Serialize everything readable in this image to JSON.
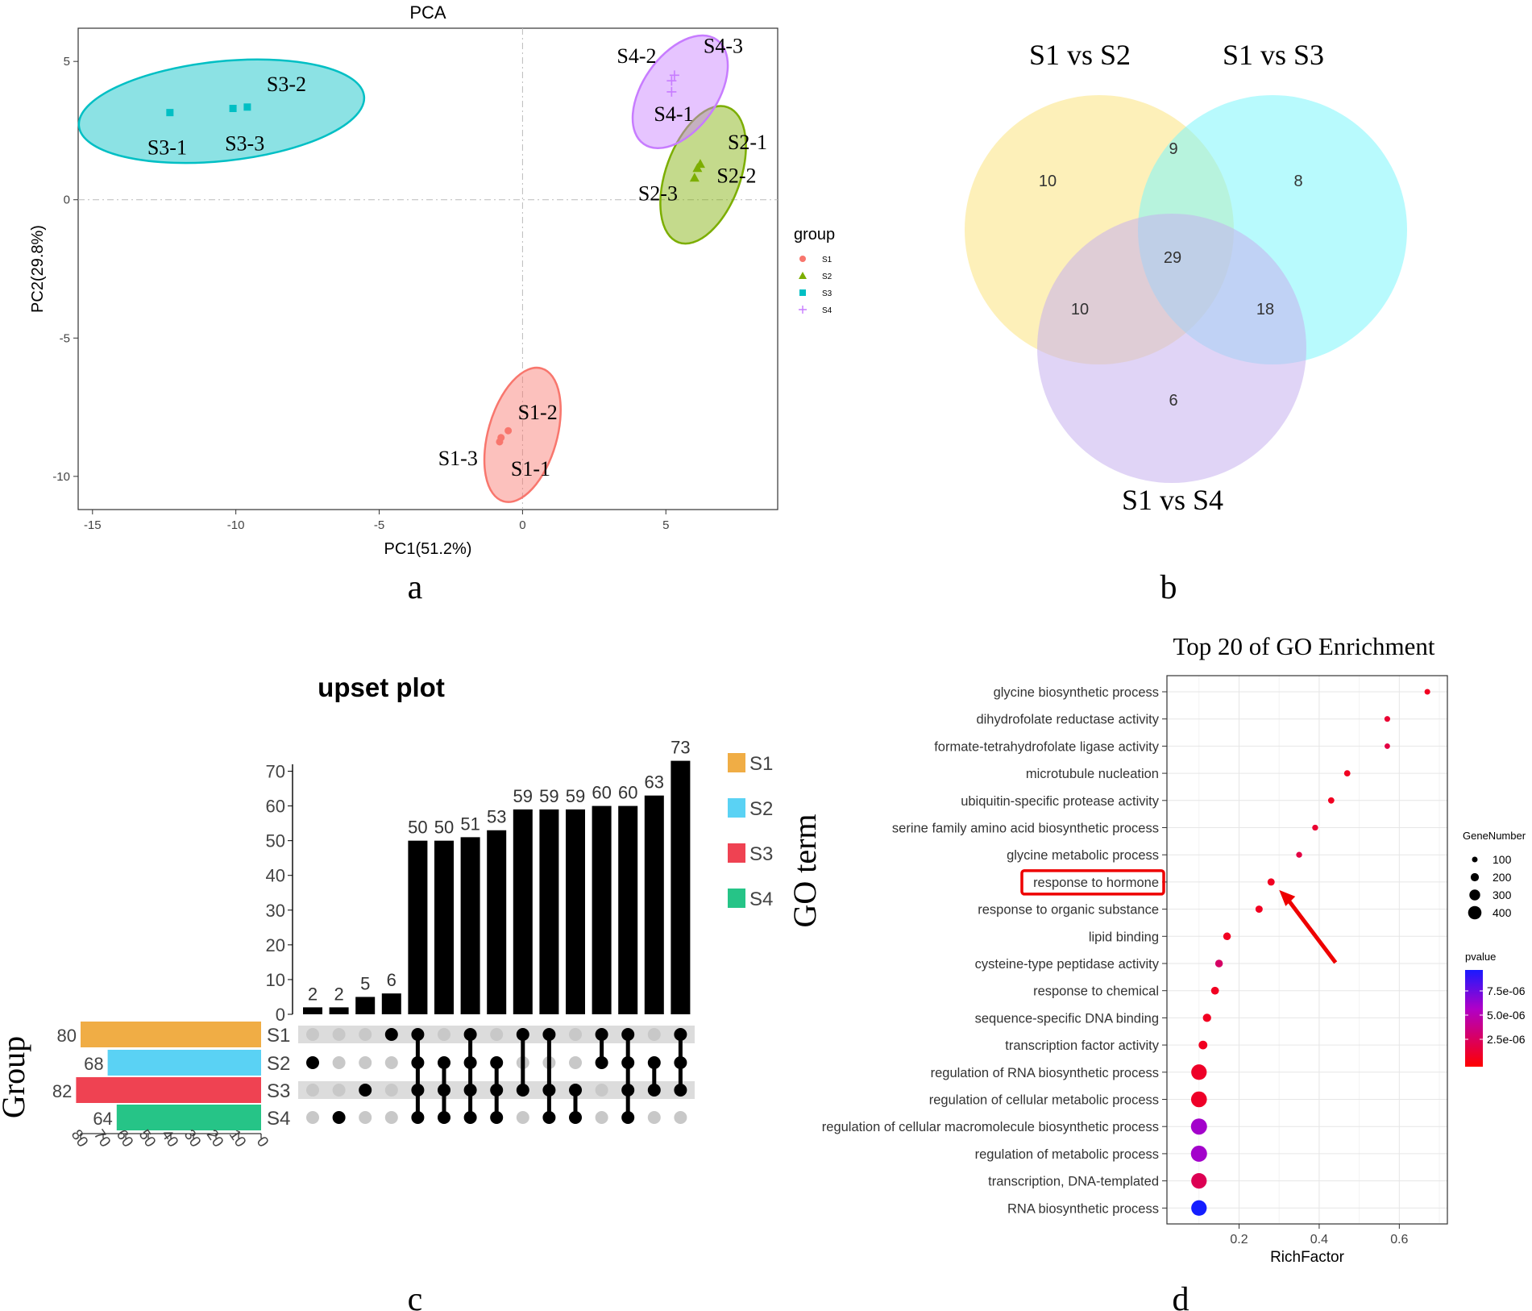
{
  "chart_data": [
    {
      "type": "scatter",
      "panel": "a",
      "title": "PCA",
      "xlabel": "PC1(51.2%)",
      "ylabel": "PC2(29.8%)",
      "xlim": [
        -15.5,
        8.9
      ],
      "ylim": [
        -11.2,
        6.2
      ],
      "xticks": [
        -15,
        -10,
        -5,
        0,
        5
      ],
      "yticks": [
        -10,
        -5,
        0,
        5
      ],
      "legend_title": "group",
      "groups": [
        {
          "name": "S1",
          "color": "#f8766d",
          "marker": "circle",
          "ellipse": {
            "cx": 0.0,
            "cy": -8.5,
            "rx": 1.2,
            "ry": 2.5,
            "angle": 16
          },
          "points": [
            {
              "label": "S1-2",
              "x": -0.5,
              "y": -8.35
            },
            {
              "label": "S1-1",
              "x": -0.8,
              "y": -8.75
            },
            {
              "label": "S1-3",
              "x": -0.75,
              "y": -8.6
            }
          ]
        },
        {
          "name": "S2",
          "color": "#7cae00",
          "marker": "triangle",
          "ellipse": {
            "cx": 6.3,
            "cy": 0.9,
            "rx": 1.3,
            "ry": 2.6,
            "angle": 20
          },
          "points": [
            {
              "label": "S2-1",
              "x": 6.2,
              "y": 1.3
            },
            {
              "label": "S2-2",
              "x": 6.1,
              "y": 1.15
            },
            {
              "label": "S2-3",
              "x": 6.0,
              "y": 0.8
            }
          ]
        },
        {
          "name": "S3",
          "color": "#00bfc4",
          "marker": "square",
          "ellipse": {
            "cx": -10.5,
            "cy": 3.2,
            "rx": 5.0,
            "ry": 1.8,
            "angle": -6
          },
          "points": [
            {
              "label": "S3-1",
              "x": -12.3,
              "y": 3.15
            },
            {
              "label": "S3-2",
              "x": -9.6,
              "y": 3.35
            },
            {
              "label": "S3-3",
              "x": -10.1,
              "y": 3.3
            }
          ]
        },
        {
          "name": "S4",
          "color": "#c77cff",
          "marker": "plus",
          "ellipse": {
            "cx": 5.5,
            "cy": 3.9,
            "rx": 1.3,
            "ry": 2.3,
            "angle": 35
          },
          "points": [
            {
              "label": "S4-3",
              "x": 5.3,
              "y": 4.5
            },
            {
              "label": "S4-2",
              "x": 5.2,
              "y": 4.3
            },
            {
              "label": "S4-1",
              "x": 5.2,
              "y": 3.9
            }
          ]
        }
      ]
    },
    {
      "type": "venn",
      "panel": "b",
      "sets": [
        {
          "name": "S1 vs S2",
          "color": "#fbe37f"
        },
        {
          "name": "S1 vs S3",
          "color": "#7ef5fb"
        },
        {
          "name": "S1 vs S4",
          "color": "#c7b1ee"
        }
      ],
      "regions": [
        {
          "sets": [
            "S1 vs S2"
          ],
          "value": 10
        },
        {
          "sets": [
            "S1 vs S2",
            "S1 vs S3"
          ],
          "value": 9
        },
        {
          "sets": [
            "S1 vs S3"
          ],
          "value": 8
        },
        {
          "sets": [
            "S1 vs S2",
            "S1 vs S3",
            "S1 vs S4"
          ],
          "value": 29
        },
        {
          "sets": [
            "S1 vs S2",
            "S1 vs S4"
          ],
          "value": 10
        },
        {
          "sets": [
            "S1 vs S3",
            "S1 vs S4"
          ],
          "value": 18
        },
        {
          "sets": [
            "S1 vs S4"
          ],
          "value": 6
        }
      ]
    },
    {
      "type": "upset",
      "panel": "c",
      "title": "upset plot",
      "ylabel": "Group",
      "ylim": [
        0,
        75
      ],
      "yticks": [
        0,
        10,
        20,
        30,
        40,
        50,
        60,
        70
      ],
      "set_size_ticks": [
        80,
        70,
        60,
        50,
        40,
        30,
        20,
        10,
        0
      ],
      "sets": [
        {
          "name": "S1",
          "size": 80,
          "color": "#f0ad45"
        },
        {
          "name": "S2",
          "size": 68,
          "color": "#5ad2f4"
        },
        {
          "name": "S3",
          "size": 82,
          "color": "#ef4252"
        },
        {
          "name": "S4",
          "size": 64,
          "color": "#26c487"
        }
      ],
      "intersections": [
        {
          "value": 2,
          "sets": [
            "S2"
          ]
        },
        {
          "value": 2,
          "sets": [
            "S4"
          ]
        },
        {
          "value": 5,
          "sets": [
            "S3"
          ]
        },
        {
          "value": 6,
          "sets": [
            "S1"
          ]
        },
        {
          "value": 50,
          "sets": [
            "S1",
            "S2",
            "S3",
            "S4"
          ]
        },
        {
          "value": 50,
          "sets": [
            "S2",
            "S3",
            "S4"
          ]
        },
        {
          "value": 51,
          "sets": [
            "S1",
            "S2",
            "S3",
            "S4"
          ]
        },
        {
          "value": 53,
          "sets": [
            "S2",
            "S3",
            "S4"
          ]
        },
        {
          "value": 59,
          "sets": [
            "S1",
            "S3"
          ]
        },
        {
          "value": 59,
          "sets": [
            "S1",
            "S3",
            "S4"
          ]
        },
        {
          "value": 59,
          "sets": [
            "S3",
            "S4"
          ]
        },
        {
          "value": 60,
          "sets": [
            "S1",
            "S2"
          ]
        },
        {
          "value": 60,
          "sets": [
            "S1",
            "S2",
            "S3",
            "S4"
          ]
        },
        {
          "value": 63,
          "sets": [
            "S2",
            "S3"
          ]
        },
        {
          "value": 73,
          "sets": [
            "S1",
            "S2",
            "S3"
          ]
        }
      ]
    },
    {
      "type": "bubble",
      "panel": "d",
      "title": "Top 20 of GO Enrichment",
      "xlabel": "RichFactor",
      "ylabel": "GO term",
      "xlim": [
        0.02,
        0.72
      ],
      "xticks": [
        0.2,
        0.4,
        0.6
      ],
      "size_legend_title": "GeneNumber",
      "size_legend": [
        100,
        200,
        300,
        400
      ],
      "color_legend_title": "pvalue",
      "color_legend_labels": [
        "7.5e-06",
        "5.0e-06",
        "2.5e-06"
      ],
      "highlight_term": "response to hormone",
      "terms": [
        {
          "term": "glycine biosynthetic process",
          "rich": 0.67,
          "genes": 8,
          "pvalue_level": 0.1
        },
        {
          "term": "dihydrofolate reductase activity",
          "rich": 0.57,
          "genes": 8,
          "pvalue_level": 0.15
        },
        {
          "term": "formate-tetrahydrofolate ligase activity",
          "rich": 0.57,
          "genes": 6,
          "pvalue_level": 0.2
        },
        {
          "term": "microtubule nucleation",
          "rich": 0.47,
          "genes": 14,
          "pvalue_level": 0.1
        },
        {
          "term": "ubiquitin-specific protease activity",
          "rich": 0.43,
          "genes": 14,
          "pvalue_level": 0.1
        },
        {
          "term": "serine family amino acid biosynthetic process",
          "rich": 0.39,
          "genes": 10,
          "pvalue_level": 0.15
        },
        {
          "term": "glycine metabolic process",
          "rich": 0.35,
          "genes": 10,
          "pvalue_level": 0.2
        },
        {
          "term": "response to hormone",
          "rich": 0.28,
          "genes": 28,
          "pvalue_level": 0.1
        },
        {
          "term": "response to organic substance",
          "rich": 0.25,
          "genes": 28,
          "pvalue_level": 0.1
        },
        {
          "term": "lipid binding",
          "rich": 0.17,
          "genes": 36,
          "pvalue_level": 0.1
        },
        {
          "term": "cysteine-type peptidase activity",
          "rich": 0.15,
          "genes": 36,
          "pvalue_level": 0.3
        },
        {
          "term": "response to chemical",
          "rich": 0.14,
          "genes": 40,
          "pvalue_level": 0.1
        },
        {
          "term": "sequence-specific DNA binding",
          "rich": 0.12,
          "genes": 50,
          "pvalue_level": 0.1
        },
        {
          "term": "transcription factor activity",
          "rich": 0.11,
          "genes": 60,
          "pvalue_level": 0.1
        },
        {
          "term": "regulation of RNA biosynthetic process",
          "rich": 0.1,
          "genes": 360,
          "pvalue_level": 0.12
        },
        {
          "term": "regulation of cellular metabolic process",
          "rich": 0.1,
          "genes": 380,
          "pvalue_level": 0.12
        },
        {
          "term": "regulation of cellular macromolecule biosynthetic process",
          "rich": 0.1,
          "genes": 400,
          "pvalue_level": 0.62
        },
        {
          "term": "regulation of metabolic process",
          "rich": 0.1,
          "genes": 400,
          "pvalue_level": 0.62
        },
        {
          "term": "transcription, DNA-templated",
          "rich": 0.1,
          "genes": 360,
          "pvalue_level": 0.25
        },
        {
          "term": "RNA biosynthetic process",
          "rich": 0.1,
          "genes": 360,
          "pvalue_level": 1.0
        }
      ]
    }
  ],
  "panel_labels": [
    "a",
    "b",
    "c",
    "d"
  ]
}
